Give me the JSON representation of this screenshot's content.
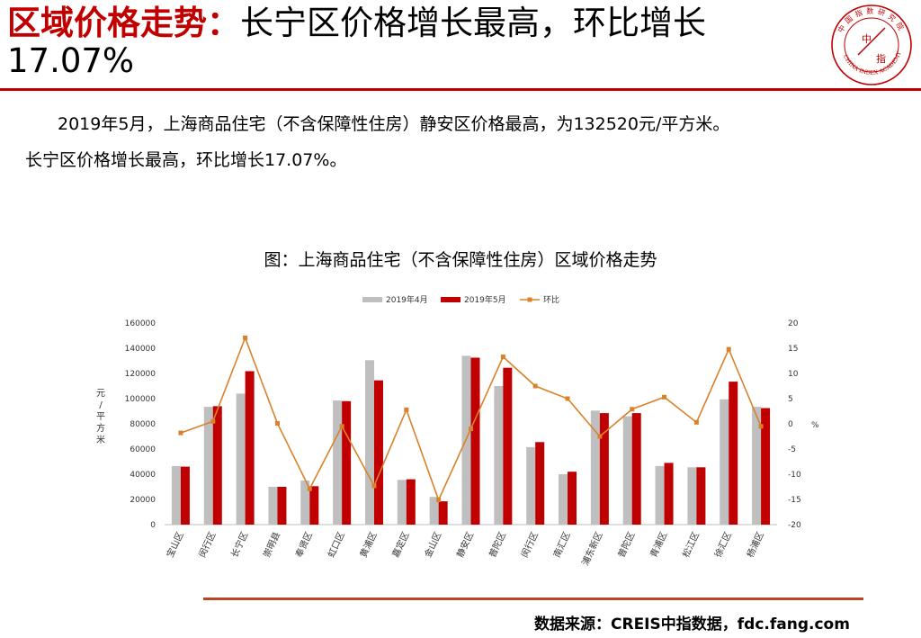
{
  "header": {
    "title_accent": "区域价格走势：",
    "title_main": "长宁区价格增长最高，环比增长",
    "title_cont": "17.07%",
    "logo": {
      "icon": "china-index-academy-seal",
      "center_text_1": "中",
      "center_text_2": "指",
      "top_text": "中国指数研究院",
      "bottom_text": "CHINA INDEX ACADEMY",
      "color": "#c00000"
    }
  },
  "body": {
    "paragraph_1": "2019年5月，上海商品住宅（不含保障性住房）静安区价格最高，为132520元/平方米。",
    "paragraph_2": "长宁区价格增长最高，环比增长17.07%。"
  },
  "footer": {
    "source": "数据来源：CREIS中指数据，fdc.fang.com"
  },
  "chart_data": {
    "type": "bar",
    "title": "图：上海商品住宅（不含保障性住房）区域价格走势",
    "legend_position": "top",
    "categories": [
      "宝山区",
      "闵行区",
      "长宁区",
      "崇明县",
      "奉贤区",
      "虹口区",
      "黄浦区",
      "嘉定区",
      "金山区",
      "静安区",
      "普陀区",
      "闵行区",
      "南汇区",
      "浦东新区",
      "普陀区",
      "青浦区",
      "松江区",
      "徐汇区",
      "杨浦区"
    ],
    "series": [
      {
        "name": "2019年4月",
        "kind": "bar",
        "axis": "left",
        "color": "#bfbfbf",
        "values": [
          46500,
          93500,
          104000,
          30000,
          35000,
          98500,
          130500,
          35500,
          22000,
          134000,
          110000,
          61500,
          40000,
          90500,
          86000,
          46500,
          45500,
          99500,
          93500
        ]
      },
      {
        "name": "2019年5月",
        "kind": "bar",
        "axis": "left",
        "color": "#c00000",
        "values": [
          46000,
          94000,
          121800,
          30000,
          30500,
          98000,
          114500,
          36000,
          18500,
          132520,
          124500,
          65500,
          42000,
          88500,
          88500,
          49000,
          45500,
          113500,
          92500
        ]
      },
      {
        "name": "环比",
        "kind": "line",
        "axis": "right",
        "color": "#d9822b",
        "values": [
          -1.8,
          0.5,
          17.07,
          0.1,
          -12.9,
          -0.5,
          -12.3,
          2.8,
          -15.1,
          -1.0,
          13.3,
          7.5,
          5.0,
          -2.5,
          2.9,
          5.3,
          0.3,
          14.8,
          -0.5
        ]
      }
    ],
    "ylabel": "元/平方米",
    "ylim": [
      0,
      160000
    ],
    "yticks": [
      0,
      20000,
      40000,
      60000,
      80000,
      100000,
      120000,
      140000,
      160000
    ],
    "y2label": "%",
    "y2lim": [
      -20,
      20
    ],
    "y2ticks": [
      -20,
      -15,
      -10,
      -5,
      0,
      5,
      10,
      15,
      20
    ],
    "grid": false
  }
}
